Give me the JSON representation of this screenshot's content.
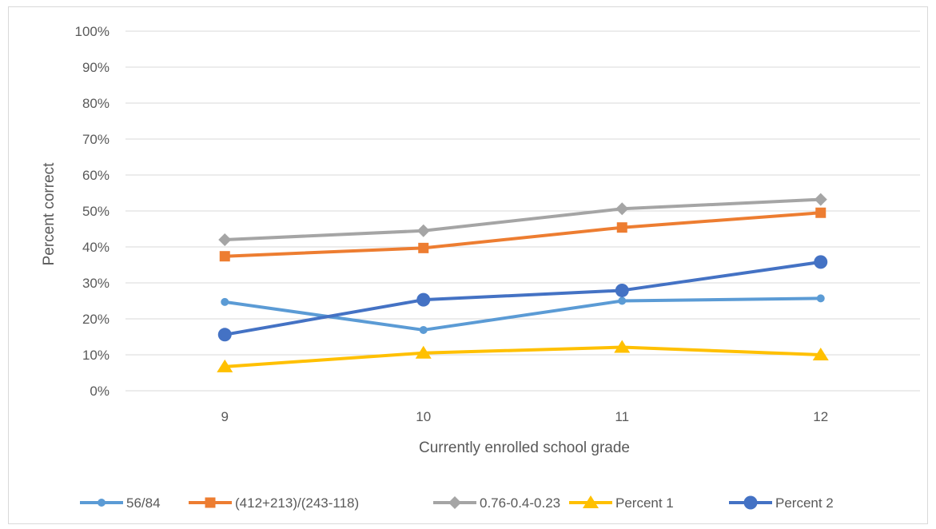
{
  "chart_data": {
    "type": "line",
    "xlabel": "Currently enrolled school grade",
    "ylabel": "Percent correct",
    "categories": [
      "9",
      "10",
      "11",
      "12"
    ],
    "ylim": [
      0,
      100
    ],
    "yticks": [
      "0%",
      "10%",
      "20%",
      "30%",
      "40%",
      "50%",
      "60%",
      "70%",
      "80%",
      "90%",
      "100%"
    ],
    "grid": true,
    "legend_position": "bottom",
    "series": [
      {
        "name": "56/84",
        "values": [
          24.7,
          16.9,
          25.0,
          25.7
        ],
        "color": "#5b9bd5",
        "marker": "circle-small"
      },
      {
        "name": "(412+213)/(243-118)",
        "values": [
          37.4,
          39.7,
          45.4,
          49.5
        ],
        "color": "#ed7d31",
        "marker": "square"
      },
      {
        "name": "0.76-0.4-0.23",
        "values": [
          42.0,
          44.5,
          50.6,
          53.2
        ],
        "color": "#a5a5a5",
        "marker": "diamond"
      },
      {
        "name": "Percent 1",
        "values": [
          6.7,
          10.5,
          12.1,
          10.0
        ],
        "color": "#ffc000",
        "marker": "triangle"
      },
      {
        "name": "Percent 2",
        "values": [
          15.6,
          25.3,
          27.9,
          35.8
        ],
        "color": "#4472c4",
        "marker": "circle-large"
      }
    ]
  }
}
